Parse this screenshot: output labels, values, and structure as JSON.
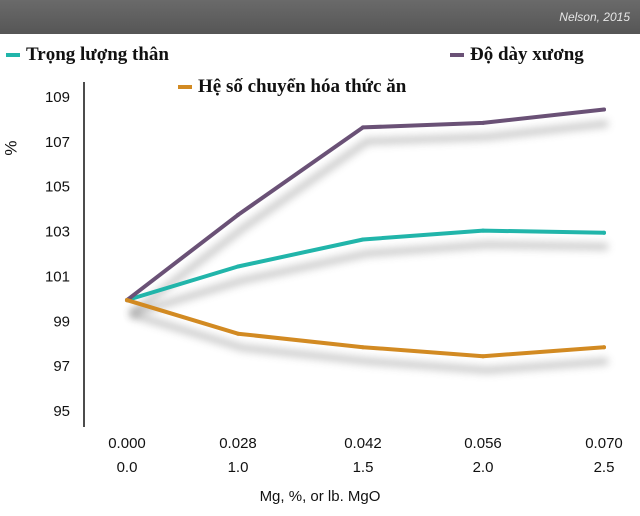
{
  "source": "Nelson, 2015",
  "chart_data": {
    "type": "line",
    "categories": [
      "0.000",
      "0.028",
      "0.042",
      "0.056",
      "0.070"
    ],
    "categories2": [
      "0.0",
      "1.0",
      "1.5",
      "2.0",
      "2.5"
    ],
    "series": [
      {
        "name": "Trọng lượng thân",
        "color": "#21b5aa",
        "values": [
          99.9,
          101.4,
          102.6,
          103.0,
          102.9
        ]
      },
      {
        "name": "Độ dày xương",
        "color": "#6a5176",
        "values": [
          99.9,
          103.7,
          107.6,
          107.8,
          108.4
        ]
      },
      {
        "name": "Hệ số chuyển hóa thức ăn",
        "color": "#d28a22",
        "values": [
          99.9,
          98.4,
          97.8,
          97.4,
          97.8
        ]
      }
    ],
    "yticks": [
      "109",
      "107",
      "105",
      "103",
      "101",
      "99",
      "97",
      "95"
    ],
    "ylim": [
      94.5,
      109
    ],
    "ylabel": "%",
    "xlabel": "Mg, %, or lb. MgO",
    "grid": false,
    "legend_position": "top"
  }
}
